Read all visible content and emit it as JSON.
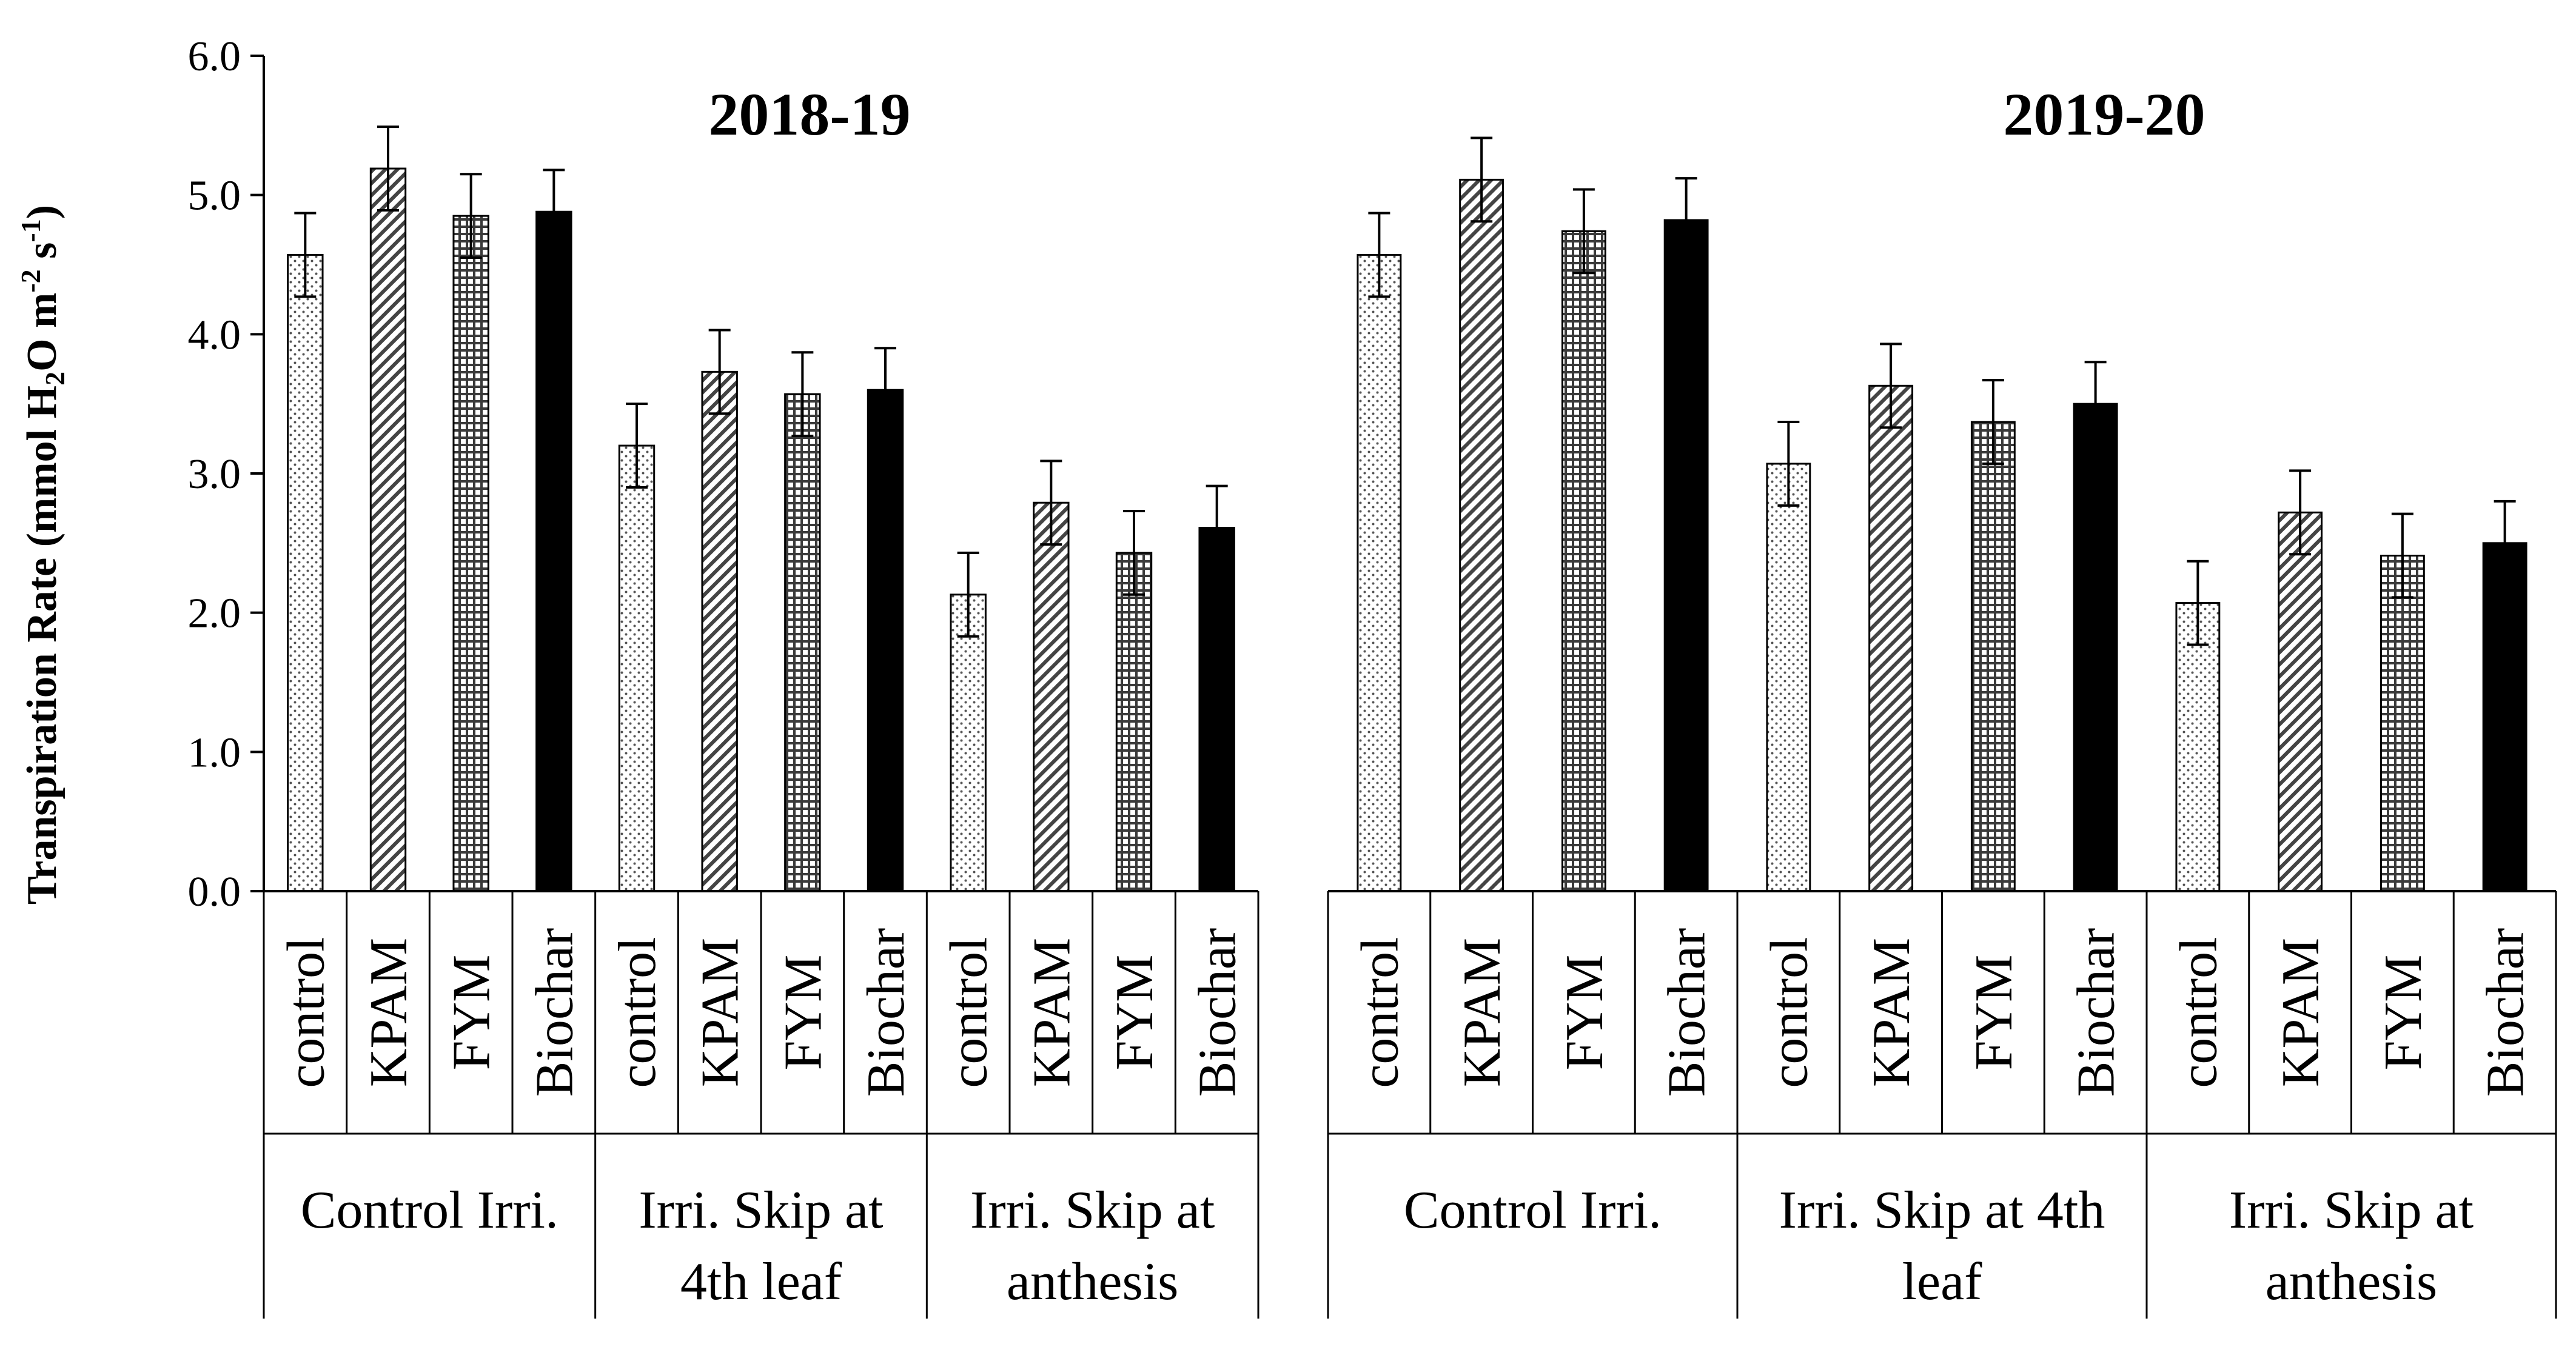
{
  "chart_data": {
    "type": "bar",
    "ylabel": "Transpiration Rate (mmol H2O m-2 s-1)",
    "ylabel_parts": {
      "pre": "Transpiration Rate (mmol H",
      "sub1": "2",
      "mid": "O m",
      "sup1": "-2",
      "mid2": " s",
      "sup2": "-1",
      "post": ")"
    },
    "ylim": [
      0,
      6
    ],
    "yticks": [
      "0.0",
      "1.0",
      "2.0",
      "3.0",
      "4.0",
      "5.0",
      "6.0"
    ],
    "treatments": [
      "control",
      "KPAM",
      "FYM",
      "Biochar"
    ],
    "patterns": [
      "dots",
      "diagonal",
      "grid",
      "solid"
    ],
    "panels": [
      {
        "title": "2018-19",
        "groups": [
          {
            "label_lines": [
              "Control Irri."
            ],
            "values": [
              4.57,
              5.19,
              4.85,
              4.88
            ],
            "errors": [
              0.3,
              0.3,
              0.3,
              0.3
            ]
          },
          {
            "label_lines": [
              "Irri. Skip at",
              "4th leaf"
            ],
            "values": [
              3.2,
              3.73,
              3.57,
              3.6
            ],
            "errors": [
              0.3,
              0.3,
              0.3,
              0.3
            ]
          },
          {
            "label_lines": [
              "Irri. Skip at",
              "anthesis"
            ],
            "values": [
              2.13,
              2.79,
              2.43,
              2.61
            ],
            "errors": [
              0.3,
              0.3,
              0.3,
              0.3
            ]
          }
        ]
      },
      {
        "title": "2019-20",
        "groups": [
          {
            "label_lines": [
              "Control Irri."
            ],
            "values": [
              4.57,
              5.11,
              4.74,
              4.82
            ],
            "errors": [
              0.3,
              0.3,
              0.3,
              0.3
            ]
          },
          {
            "label_lines": [
              "Irri. Skip at 4th",
              "leaf"
            ],
            "values": [
              3.07,
              3.63,
              3.37,
              3.5
            ],
            "errors": [
              0.3,
              0.3,
              0.3,
              0.3
            ]
          },
          {
            "label_lines": [
              "Irri. Skip at",
              "anthesis"
            ],
            "values": [
              2.07,
              2.72,
              2.41,
              2.5
            ],
            "errors": [
              0.3,
              0.3,
              0.3,
              0.3
            ]
          }
        ]
      }
    ],
    "grid": false,
    "legend": "none"
  }
}
